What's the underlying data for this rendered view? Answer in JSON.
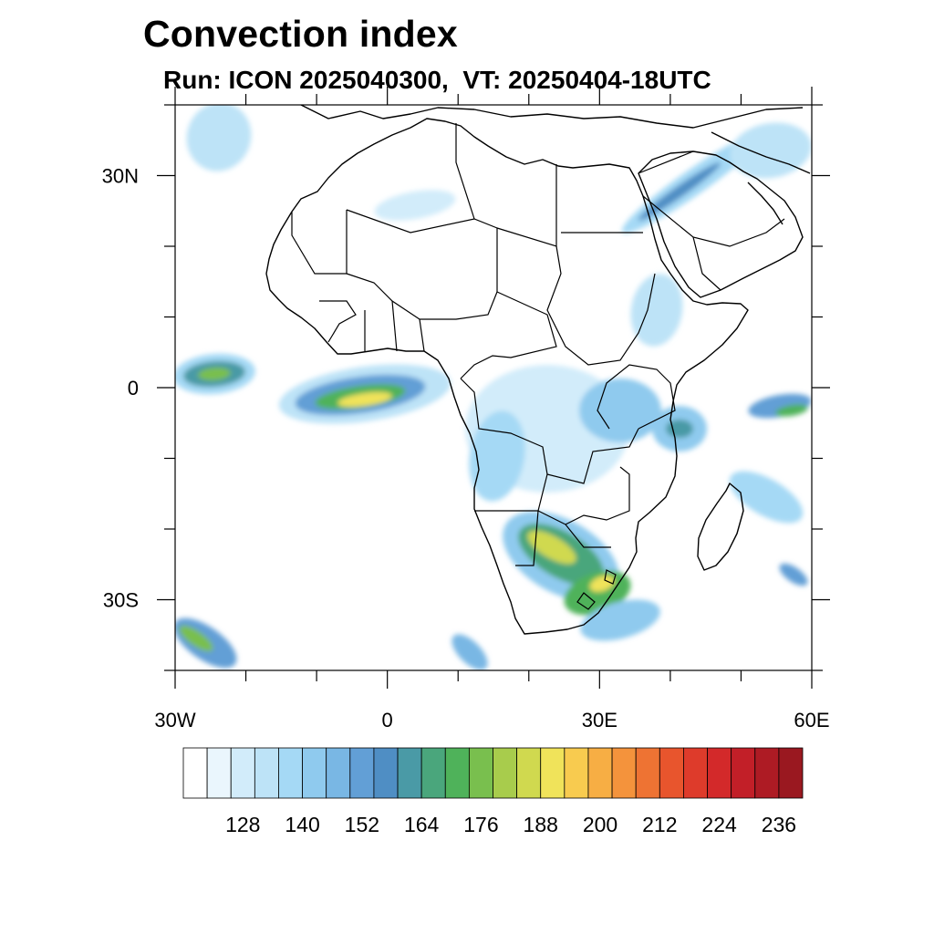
{
  "title": "Convection index",
  "subtitle": "Run: ICON 2025040300,  VT: 20250404-18UTC",
  "axes": {
    "lat_labels": [
      {
        "text": "30N",
        "lat": 30
      },
      {
        "text": "0",
        "lat": 0
      },
      {
        "text": "30S",
        "lat": -30
      }
    ],
    "lon_labels": [
      {
        "text": "30W",
        "lon": -30
      },
      {
        "text": "0",
        "lon": 0
      },
      {
        "text": "30E",
        "lon": 30
      },
      {
        "text": "60E",
        "lon": 60
      }
    ],
    "lon_range": [
      -30,
      60
    ],
    "lat_range": [
      -40,
      40
    ]
  },
  "colorbar": {
    "labels": [
      "128",
      "140",
      "152",
      "164",
      "176",
      "188",
      "200",
      "212",
      "224",
      "236"
    ],
    "colors": [
      "#ffffff",
      "#eaf6fd",
      "#d2ecfa",
      "#bde3f7",
      "#a5d9f5",
      "#8fcaee",
      "#79b7e4",
      "#629fd6",
      "#4f8ec4",
      "#4a9aa6",
      "#4aa67c",
      "#4fb25a",
      "#79bf4e",
      "#a8cc4c",
      "#d0d94f",
      "#f0e35a",
      "#f8cb4f",
      "#f7ae44",
      "#f4933c",
      "#ee7333",
      "#e8552d",
      "#de3b2b",
      "#d3292a",
      "#c21f28",
      "#ae1b24",
      "#9a1820"
    ]
  },
  "chart_data": {
    "type": "heatmap",
    "title": "Convection index",
    "subtitle": "Run: ICON 2025040300,  VT: 20250404-18UTC",
    "xlim": [
      -30,
      60
    ],
    "ylim": [
      -40,
      40
    ],
    "levels": [
      128,
      140,
      152,
      164,
      176,
      188,
      200,
      212,
      224,
      236
    ],
    "regions": [
      {
        "lon": -25,
        "lat": 2,
        "value": 164
      },
      {
        "lon": 0,
        "lat": -1,
        "value": 176
      },
      {
        "lon": 2,
        "lat": 0,
        "value": 188
      },
      {
        "lon": 22,
        "lat": -23,
        "value": 188
      },
      {
        "lon": 28,
        "lat": -27,
        "value": 188
      },
      {
        "lon": 45,
        "lat": -3,
        "value": 152
      },
      {
        "lon": 38,
        "lat": 10,
        "value": 140
      },
      {
        "lon": 48,
        "lat": 30,
        "value": 152
      },
      {
        "lon": -26,
        "lat": -36,
        "value": 164
      }
    ]
  }
}
